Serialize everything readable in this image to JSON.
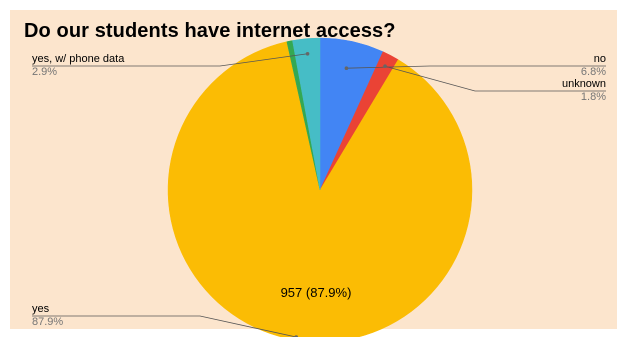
{
  "chart_data": {
    "type": "pie",
    "title": "Do our students have internet access?",
    "slices": [
      {
        "label": "no",
        "percent_label": "6.8%",
        "value": 6.8,
        "color": "#4285f4"
      },
      {
        "label": "unknown",
        "percent_label": "1.8%",
        "value": 1.8,
        "color": "#ea4335"
      },
      {
        "label": "yes",
        "percent_label": "87.9%",
        "value": 87.9,
        "color": "#fbbc04",
        "data_label": "957 (87.9%)"
      },
      {
        "label": "",
        "percent_label": "",
        "value": 0.6,
        "color": "#34a853"
      },
      {
        "label": "yes, w/ phone data",
        "percent_label": "2.9%",
        "value": 2.9,
        "color": "#46bdc6"
      }
    ]
  }
}
